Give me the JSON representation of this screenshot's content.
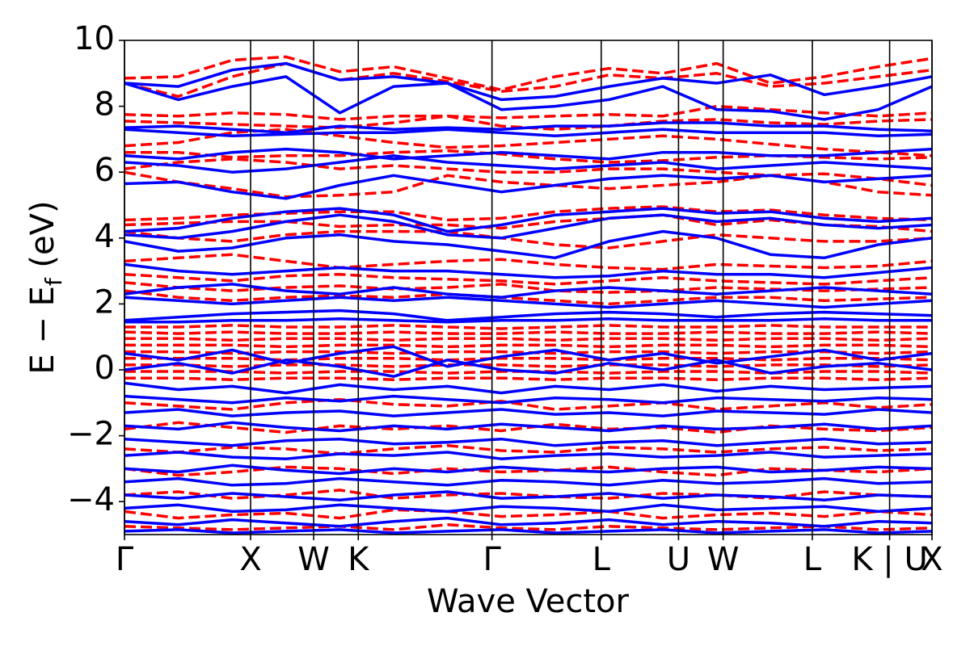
{
  "chart_data": {
    "type": "line",
    "title": "",
    "xlabel": "Wave Vector",
    "ylabel": "E − E",
    "ylabel_subscript": "f",
    "ylabel_unit": " (eV)",
    "ylim": [
      -5,
      10
    ],
    "y_ticks": [
      -4,
      -2,
      0,
      2,
      4,
      6,
      8,
      10
    ],
    "y_tick_labels": [
      "−4",
      "−2",
      "0",
      "2",
      "4",
      "6",
      "8",
      "10"
    ],
    "x_range": [
      0,
      6.403
    ],
    "high_symmetry_points": [
      {
        "label": "Γ",
        "x": 0.0
      },
      {
        "label": "X",
        "x": 1.0
      },
      {
        "label": "W",
        "x": 1.5
      },
      {
        "label": "K",
        "x": 1.854
      },
      {
        "label": "Γ",
        "x": 2.914
      },
      {
        "label": "L",
        "x": 3.78
      },
      {
        "label": "U",
        "x": 4.393
      },
      {
        "label": "W",
        "x": 4.747
      },
      {
        "label": "L",
        "x": 5.454
      },
      {
        "label": "K | U",
        "x": 6.067
      },
      {
        "label": "X",
        "x": 6.403
      }
    ],
    "grid": false,
    "legend": "none",
    "series": [
      {
        "style": "dashed",
        "color": "#ff0000",
        "bands": [
          [
            8.85,
            8.9,
            9.4,
            9.5,
            9.05,
            9.2,
            8.85,
            8.5,
            8.9,
            9.15,
            9.0,
            9.3,
            8.7,
            8.9,
            9.2,
            9.45
          ],
          [
            8.7,
            8.3,
            8.9,
            9.3,
            8.8,
            9.0,
            8.75,
            8.45,
            8.6,
            8.95,
            8.85,
            9.0,
            8.6,
            8.7,
            8.9,
            9.1
          ],
          [
            7.75,
            7.7,
            7.8,
            7.75,
            7.6,
            7.7,
            7.7,
            7.65,
            7.7,
            7.75,
            7.7,
            8.0,
            7.9,
            7.8,
            7.7,
            7.8
          ],
          [
            7.55,
            7.5,
            7.45,
            7.4,
            7.35,
            7.5,
            7.7,
            7.4,
            7.3,
            7.4,
            7.55,
            7.6,
            7.5,
            7.45,
            7.55,
            7.6
          ],
          [
            6.8,
            6.9,
            7.2,
            7.3,
            7.1,
            6.9,
            6.75,
            6.8,
            6.9,
            7.0,
            7.1,
            7.0,
            6.85,
            6.7,
            6.6,
            6.5
          ],
          [
            6.6,
            6.6,
            6.45,
            6.5,
            6.5,
            6.6,
            6.65,
            6.55,
            6.4,
            6.3,
            6.35,
            6.45,
            6.5,
            6.45,
            6.4,
            6.45
          ],
          [
            6.1,
            6.3,
            6.4,
            6.3,
            6.1,
            6.2,
            6.1,
            6.0,
            6.0,
            6.1,
            6.1,
            6.0,
            5.9,
            5.95,
            5.8,
            5.6
          ],
          [
            6.0,
            5.7,
            5.5,
            5.25,
            5.3,
            5.4,
            5.9,
            5.7,
            5.6,
            5.5,
            5.6,
            5.7,
            5.9,
            5.7,
            5.4,
            5.3
          ],
          [
            4.55,
            4.6,
            4.7,
            4.75,
            4.8,
            4.8,
            4.55,
            4.6,
            4.8,
            4.9,
            4.95,
            4.8,
            4.85,
            4.7,
            4.6,
            4.55
          ],
          [
            4.4,
            4.45,
            4.5,
            4.5,
            4.35,
            4.4,
            4.4,
            4.3,
            4.5,
            4.6,
            4.7,
            4.4,
            4.55,
            4.4,
            4.35,
            4.2
          ],
          [
            4.2,
            4.0,
            3.9,
            4.1,
            4.2,
            4.2,
            4.2,
            4.0,
            3.8,
            3.7,
            3.9,
            4.1,
            4.0,
            3.9,
            3.9,
            4.0
          ],
          [
            3.3,
            3.4,
            3.5,
            3.3,
            3.1,
            3.2,
            3.3,
            3.35,
            3.2,
            3.1,
            3.05,
            3.2,
            3.15,
            3.1,
            3.15,
            3.3
          ],
          [
            2.9,
            2.8,
            2.7,
            2.85,
            2.9,
            2.8,
            2.75,
            2.7,
            2.6,
            2.7,
            2.8,
            2.7,
            2.65,
            2.6,
            2.7,
            2.8
          ],
          [
            2.65,
            2.5,
            2.4,
            2.5,
            2.55,
            2.45,
            2.5,
            2.6,
            2.4,
            2.35,
            2.4,
            2.5,
            2.45,
            2.4,
            2.45,
            2.5
          ],
          [
            2.4,
            2.2,
            2.1,
            2.2,
            2.25,
            2.2,
            2.3,
            2.2,
            2.1,
            2.0,
            2.1,
            2.2,
            2.2,
            2.1,
            2.15,
            2.2
          ],
          [
            1.3,
            1.3,
            1.35,
            1.3,
            1.3,
            1.35,
            1.3,
            1.25,
            1.3,
            1.35,
            1.3,
            1.3,
            1.35,
            1.3,
            1.3,
            1.3
          ],
          [
            1.15,
            1.1,
            1.15,
            1.1,
            1.1,
            1.15,
            1.1,
            1.1,
            1.15,
            1.1,
            1.1,
            1.15,
            1.1,
            1.1,
            1.15,
            1.1
          ],
          [
            0.95,
            0.95,
            0.9,
            0.95,
            0.95,
            0.9,
            0.95,
            0.95,
            0.9,
            0.95,
            0.95,
            0.9,
            0.95,
            0.95,
            0.9,
            0.95
          ],
          [
            0.75,
            0.75,
            0.75,
            0.7,
            0.75,
            0.75,
            0.7,
            0.75,
            0.75,
            0.7,
            0.75,
            0.75,
            0.7,
            0.75,
            0.75,
            0.7
          ],
          [
            0.55,
            0.55,
            0.5,
            0.55,
            0.55,
            0.5,
            0.55,
            0.55,
            0.5,
            0.55,
            0.55,
            0.5,
            0.55,
            0.55,
            0.5,
            0.55
          ],
          [
            0.35,
            0.35,
            0.35,
            0.3,
            0.35,
            0.35,
            0.3,
            0.35,
            0.35,
            0.3,
            0.35,
            0.35,
            0.3,
            0.35,
            0.35,
            0.3
          ],
          [
            0.15,
            0.15,
            0.1,
            0.15,
            0.15,
            0.1,
            0.15,
            0.15,
            0.1,
            0.15,
            0.15,
            0.1,
            0.15,
            0.15,
            0.1,
            0.15
          ],
          [
            -0.05,
            -0.05,
            -0.05,
            -0.1,
            -0.05,
            -0.05,
            -0.1,
            -0.05,
            -0.05,
            -0.1,
            -0.05,
            -0.05,
            -0.1,
            -0.05,
            -0.05,
            -0.1
          ],
          [
            -0.25,
            -0.25,
            -0.3,
            -0.25,
            -0.25,
            -0.3,
            -0.25,
            -0.25,
            -0.3,
            -0.25,
            -0.25,
            -0.3,
            -0.25,
            -0.25,
            -0.3,
            -0.25
          ],
          [
            -1.0,
            -1.1,
            -1.2,
            -1.0,
            -0.9,
            -1.05,
            -1.1,
            -0.95,
            -1.2,
            -1.1,
            -1.0,
            -1.2,
            -1.1,
            -1.0,
            -1.15,
            -1.05
          ],
          [
            -1.8,
            -1.6,
            -1.75,
            -1.9,
            -1.7,
            -1.8,
            -1.7,
            -1.85,
            -1.65,
            -1.8,
            -1.75,
            -1.9,
            -1.7,
            -1.8,
            -1.85,
            -1.75
          ],
          [
            -2.4,
            -2.5,
            -2.35,
            -2.4,
            -2.55,
            -2.4,
            -2.3,
            -2.45,
            -2.5,
            -2.35,
            -2.4,
            -2.5,
            -2.4,
            -2.35,
            -2.45,
            -2.4
          ],
          [
            -3.0,
            -3.2,
            -3.1,
            -2.95,
            -3.0,
            -3.15,
            -3.0,
            -3.1,
            -3.05,
            -2.95,
            -3.1,
            -3.2,
            -3.0,
            -3.05,
            -3.1,
            -3.0
          ],
          [
            -3.8,
            -3.7,
            -3.9,
            -3.8,
            -3.65,
            -3.9,
            -3.8,
            -3.75,
            -3.85,
            -3.9,
            -3.75,
            -3.8,
            -3.9,
            -3.7,
            -3.8,
            -3.85
          ],
          [
            -4.3,
            -4.5,
            -4.4,
            -4.35,
            -4.5,
            -4.25,
            -4.3,
            -4.45,
            -4.4,
            -4.3,
            -4.5,
            -4.4,
            -4.35,
            -4.45,
            -4.3,
            -4.4
          ],
          [
            -4.75,
            -4.8,
            -4.85,
            -4.8,
            -4.75,
            -4.85,
            -4.7,
            -4.8,
            -4.85,
            -4.75,
            -4.8,
            -4.85,
            -4.8,
            -4.75,
            -4.85,
            -4.8
          ]
        ]
      },
      {
        "style": "solid",
        "color": "#0000ff",
        "bands": [
          [
            8.7,
            8.6,
            9.1,
            9.3,
            8.8,
            8.9,
            8.7,
            8.2,
            8.3,
            8.6,
            8.85,
            8.7,
            8.95,
            8.35,
            8.6,
            8.9
          ],
          [
            8.7,
            8.2,
            8.6,
            8.9,
            7.8,
            8.6,
            8.7,
            7.9,
            8.0,
            8.2,
            8.6,
            7.9,
            7.85,
            7.6,
            7.9,
            8.6
          ],
          [
            7.35,
            7.4,
            7.3,
            7.2,
            7.4,
            7.3,
            7.35,
            7.3,
            7.4,
            7.4,
            7.5,
            7.5,
            7.4,
            7.4,
            7.3,
            7.25
          ],
          [
            7.3,
            7.2,
            7.1,
            7.15,
            7.2,
            7.2,
            7.3,
            7.2,
            7.1,
            7.2,
            7.3,
            7.2,
            7.2,
            7.2,
            7.1,
            7.15
          ],
          [
            6.5,
            6.4,
            6.6,
            6.7,
            6.6,
            6.4,
            6.5,
            6.6,
            6.5,
            6.4,
            6.6,
            6.6,
            6.5,
            6.5,
            6.6,
            6.7
          ],
          [
            6.3,
            6.2,
            6.0,
            6.1,
            6.3,
            6.5,
            6.3,
            6.2,
            6.1,
            6.2,
            6.3,
            6.1,
            6.2,
            6.3,
            6.2,
            6.1
          ],
          [
            5.65,
            5.7,
            5.4,
            5.2,
            5.6,
            5.9,
            5.65,
            5.4,
            5.6,
            5.8,
            5.9,
            5.8,
            5.9,
            5.7,
            5.8,
            5.9
          ],
          [
            4.2,
            4.3,
            4.6,
            4.8,
            4.9,
            4.7,
            4.2,
            4.4,
            4.7,
            4.8,
            4.9,
            4.75,
            4.8,
            4.6,
            4.5,
            4.6
          ],
          [
            4.1,
            4.0,
            4.2,
            4.5,
            4.7,
            4.5,
            4.1,
            4.0,
            4.3,
            4.6,
            4.7,
            4.5,
            4.6,
            4.4,
            4.3,
            4.4
          ],
          [
            3.9,
            3.6,
            3.7,
            4.0,
            4.1,
            3.9,
            3.8,
            3.6,
            3.4,
            3.9,
            4.2,
            4.0,
            3.5,
            3.4,
            3.8,
            4.0
          ],
          [
            3.2,
            3.0,
            2.9,
            3.0,
            3.1,
            3.0,
            3.0,
            2.9,
            2.8,
            2.85,
            3.0,
            2.9,
            2.9,
            2.8,
            2.95,
            3.1
          ],
          [
            2.3,
            2.5,
            2.6,
            2.4,
            2.3,
            2.5,
            2.3,
            2.2,
            2.4,
            2.5,
            2.4,
            2.3,
            2.4,
            2.5,
            2.4,
            2.3
          ],
          [
            2.2,
            2.1,
            2.0,
            2.1,
            2.2,
            2.1,
            2.2,
            2.1,
            2.0,
            1.9,
            2.0,
            2.1,
            2.0,
            1.9,
            2.0,
            2.1
          ],
          [
            1.5,
            1.6,
            1.7,
            1.75,
            1.8,
            1.7,
            1.5,
            1.6,
            1.7,
            1.75,
            1.7,
            1.6,
            1.7,
            1.75,
            1.7,
            1.65
          ],
          [
            1.45,
            1.45,
            1.5,
            1.5,
            1.55,
            1.5,
            1.45,
            1.5,
            1.5,
            1.55,
            1.5,
            1.5,
            1.5,
            1.55,
            1.5,
            1.5
          ],
          [
            0.5,
            0.3,
            0.6,
            0.2,
            0.5,
            0.7,
            0.1,
            0.4,
            0.6,
            0.3,
            0.5,
            0.2,
            0.4,
            0.6,
            0.3,
            0.5
          ],
          [
            0.0,
            0.2,
            -0.1,
            0.3,
            0.1,
            -0.2,
            0.3,
            0.0,
            -0.1,
            0.2,
            0.0,
            0.3,
            -0.1,
            0.1,
            0.2,
            0.0
          ],
          [
            -0.4,
            -0.6,
            -0.5,
            -0.7,
            -0.45,
            -0.6,
            -0.5,
            -0.7,
            -0.5,
            -0.6,
            -0.45,
            -0.65,
            -0.5,
            -0.6,
            -0.55,
            -0.5
          ],
          [
            -0.8,
            -0.9,
            -1.0,
            -0.85,
            -0.95,
            -0.8,
            -0.9,
            -1.0,
            -0.85,
            -0.9,
            -1.0,
            -0.85,
            -0.9,
            -0.95,
            -0.85,
            -0.9
          ],
          [
            -1.3,
            -1.2,
            -1.4,
            -1.3,
            -1.25,
            -1.4,
            -1.3,
            -1.2,
            -1.35,
            -1.3,
            -1.4,
            -1.25,
            -1.3,
            -1.35,
            -1.2,
            -1.3
          ],
          [
            -1.7,
            -1.8,
            -1.6,
            -1.75,
            -1.85,
            -1.7,
            -1.8,
            -1.65,
            -1.75,
            -1.85,
            -1.7,
            -1.8,
            -1.75,
            -1.65,
            -1.8,
            -1.7
          ],
          [
            -2.1,
            -2.2,
            -2.3,
            -2.15,
            -2.1,
            -2.25,
            -2.2,
            -2.1,
            -2.3,
            -2.2,
            -2.15,
            -2.3,
            -2.2,
            -2.1,
            -2.25,
            -2.2
          ],
          [
            -2.6,
            -2.5,
            -2.65,
            -2.7,
            -2.55,
            -2.6,
            -2.5,
            -2.7,
            -2.6,
            -2.55,
            -2.65,
            -2.6,
            -2.5,
            -2.65,
            -2.6,
            -2.55
          ],
          [
            -3.0,
            -3.1,
            -2.9,
            -3.05,
            -3.15,
            -3.0,
            -3.1,
            -2.95,
            -3.05,
            -3.1,
            -3.0,
            -2.95,
            -3.1,
            -3.05,
            -2.95,
            -3.0
          ],
          [
            -3.4,
            -3.3,
            -3.5,
            -3.45,
            -3.3,
            -3.4,
            -3.5,
            -3.35,
            -3.4,
            -3.5,
            -3.35,
            -3.45,
            -3.4,
            -3.3,
            -3.45,
            -3.4
          ],
          [
            -3.8,
            -3.9,
            -3.75,
            -3.85,
            -3.95,
            -3.8,
            -3.7,
            -3.9,
            -3.85,
            -3.75,
            -3.9,
            -3.8,
            -3.85,
            -3.95,
            -3.8,
            -3.85
          ],
          [
            -4.2,
            -4.1,
            -4.3,
            -4.25,
            -4.1,
            -4.2,
            -4.3,
            -4.15,
            -4.2,
            -4.3,
            -4.1,
            -4.25,
            -4.2,
            -4.15,
            -4.3,
            -4.2
          ],
          [
            -4.6,
            -4.7,
            -4.55,
            -4.65,
            -4.75,
            -4.6,
            -4.5,
            -4.7,
            -4.65,
            -4.55,
            -4.7,
            -4.6,
            -4.65,
            -4.75,
            -4.6,
            -4.65
          ],
          [
            -4.9,
            -4.85,
            -4.95,
            -4.9,
            -4.85,
            -4.95,
            -4.9,
            -4.85,
            -4.95,
            -4.9,
            -4.85,
            -4.95,
            -4.9,
            -4.85,
            -4.95,
            -4.9
          ]
        ]
      }
    ]
  }
}
